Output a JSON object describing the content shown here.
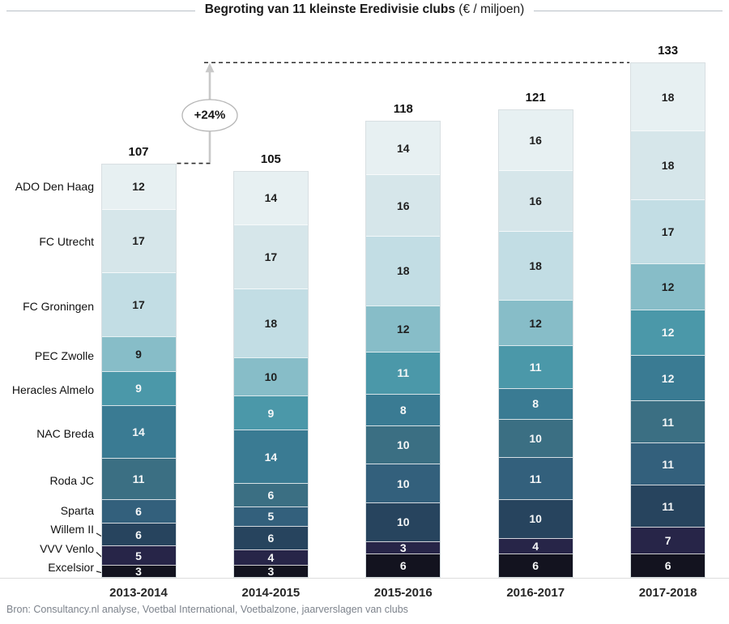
{
  "title": {
    "bold": "Begroting van 11 kleinste Eredivisie clubs",
    "normal": " (€ / miljoen)"
  },
  "annotation": {
    "label": "+24%",
    "from_category": "2013-2014",
    "to_category": "2017-2018"
  },
  "source": "Bron: Consultancy.nl analyse, Voetbal International, Voetbalzone, jaarverslagen van clubs",
  "chart_data": {
    "type": "bar",
    "stacked": true,
    "grid": false,
    "legend_position": "left-labels-on-first-bar",
    "categories": [
      "2013-2014",
      "2014-2015",
      "2015-2016",
      "2016-2017",
      "2017-2018"
    ],
    "totals": [
      107,
      105,
      118,
      121,
      133
    ],
    "ylim": [
      0,
      140
    ],
    "series": [
      {
        "name": "ADO Den Haag",
        "color": "#e7f0f2",
        "label_color": "dark",
        "values": [
          12,
          14,
          14,
          16,
          18
        ]
      },
      {
        "name": "FC Utrecht",
        "color": "#d6e6ea",
        "label_color": "dark",
        "values": [
          17,
          17,
          16,
          16,
          18
        ]
      },
      {
        "name": "FC Groningen",
        "color": "#c2dde4",
        "label_color": "dark",
        "values": [
          17,
          18,
          18,
          18,
          17
        ]
      },
      {
        "name": "PEC Zwolle",
        "color": "#87bdc8",
        "label_color": "dark",
        "values": [
          9,
          10,
          12,
          12,
          12
        ]
      },
      {
        "name": "Heracles Almelo",
        "color": "#4b98a9",
        "label_color": "light",
        "values": [
          9,
          9,
          11,
          11,
          12
        ]
      },
      {
        "name": "NAC Breda",
        "color": "#3a7b93",
        "label_color": "light",
        "values": [
          14,
          14,
          8,
          8,
          12
        ]
      },
      {
        "name": "Roda JC",
        "color": "#3b6f83",
        "label_color": "light",
        "values": [
          11,
          6,
          10,
          10,
          11
        ]
      },
      {
        "name": "Sparta",
        "color": "#33607c",
        "label_color": "light",
        "values": [
          6,
          5,
          10,
          11,
          11
        ]
      },
      {
        "name": "Willem II",
        "color": "#27445e",
        "label_color": "light",
        "values": [
          6,
          6,
          10,
          10,
          11
        ]
      },
      {
        "name": "VVV Venlo",
        "color": "#272548",
        "label_color": "light",
        "values": [
          5,
          4,
          3,
          4,
          7
        ]
      },
      {
        "name": "Excelsior",
        "color": "#13131f",
        "label_color": "light",
        "values": [
          3,
          3,
          6,
          6,
          6
        ]
      }
    ],
    "annotation_arrow_color": "#c9c9c9",
    "dashed_line_color": "#2f2f2f"
  }
}
